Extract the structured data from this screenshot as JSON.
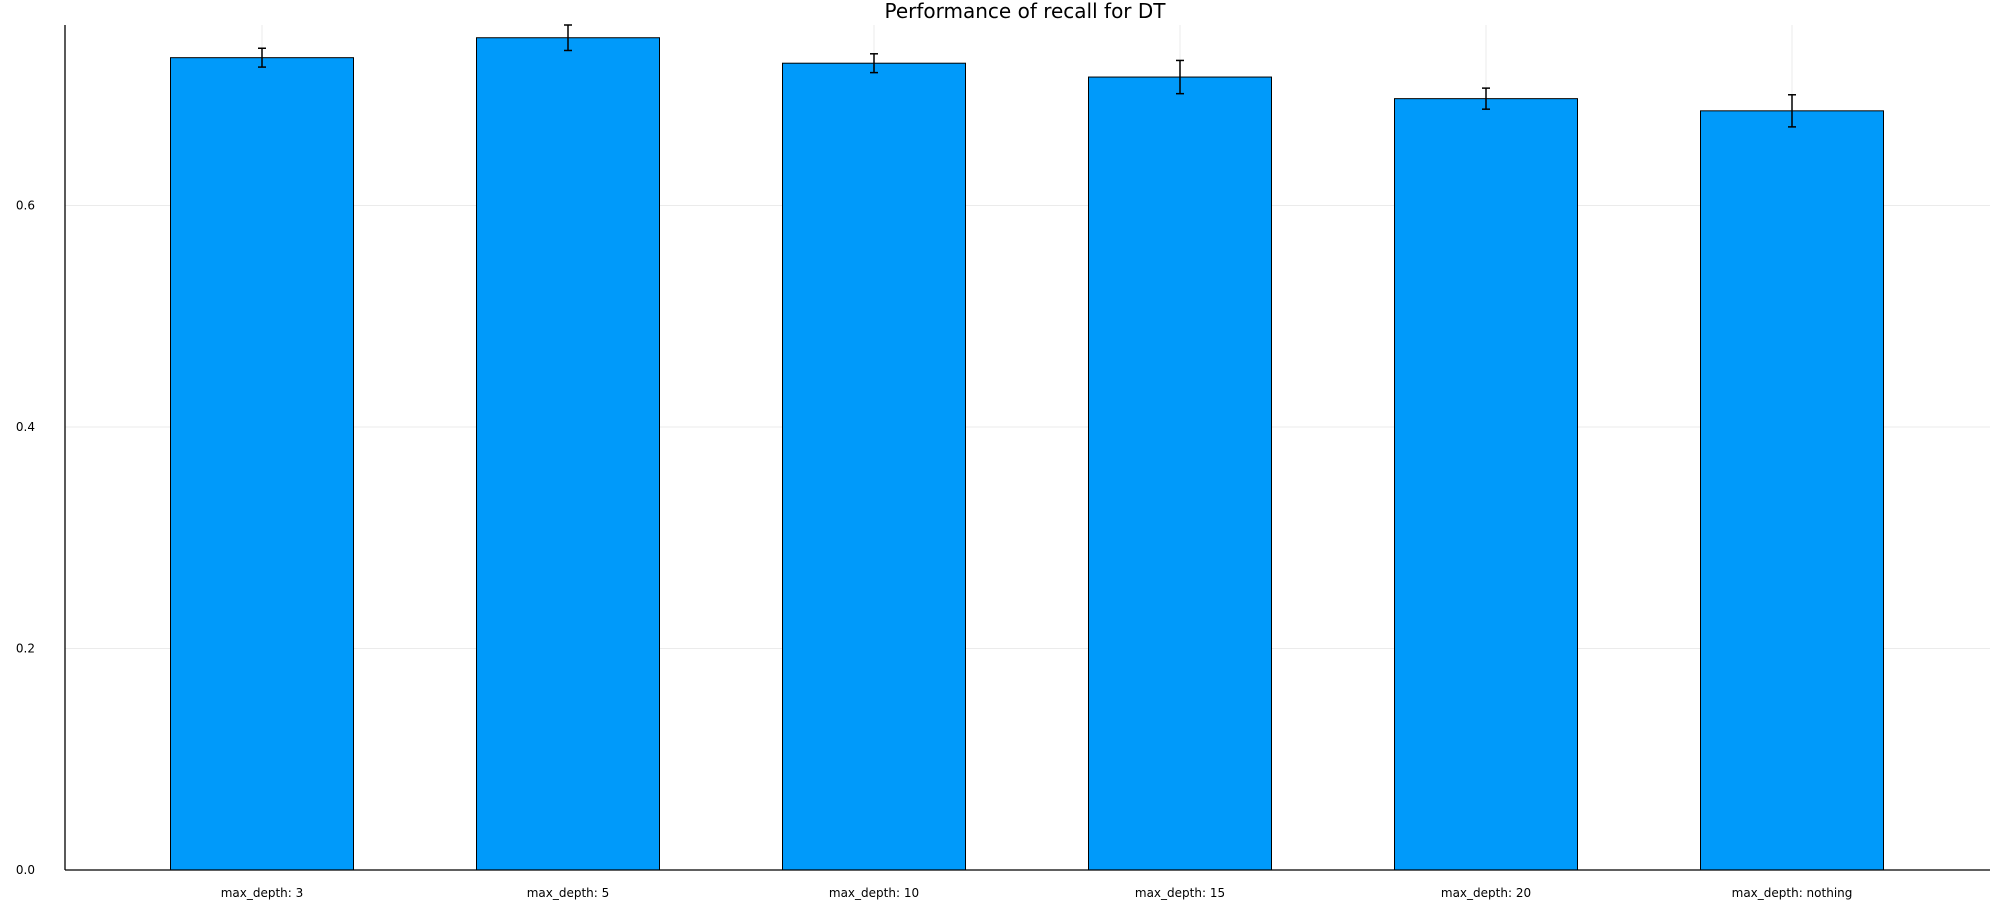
{
  "chart_data": {
    "type": "bar",
    "title": "Performance of recall for DT",
    "xlabel": "",
    "ylabel": "",
    "categories": [
      "max_depth: 3",
      "max_depth: 5",
      "max_depth: 10",
      "max_depth: 15",
      "max_depth: 20",
      "max_depth: nothing"
    ],
    "values": [
      0.7335,
      0.7515,
      0.7285,
      0.716,
      0.6965,
      0.6855
    ],
    "error_bars": [
      {
        "low": 0.725,
        "high": 0.742
      },
      {
        "low": 0.74,
        "high": 0.763
      },
      {
        "low": 0.72,
        "high": 0.737
      },
      {
        "low": 0.701,
        "high": 0.731
      },
      {
        "low": 0.687,
        "high": 0.706
      },
      {
        "low": 0.671,
        "high": 0.7
      }
    ],
    "yticks": [
      "0.0",
      "0.2",
      "0.4",
      "0.6"
    ],
    "ytick_values": [
      0,
      0.2,
      0.4,
      0.6
    ],
    "ylim": [
      0,
      0.763
    ],
    "grid": true,
    "legend": "none",
    "bar_color": "#009AFA"
  }
}
